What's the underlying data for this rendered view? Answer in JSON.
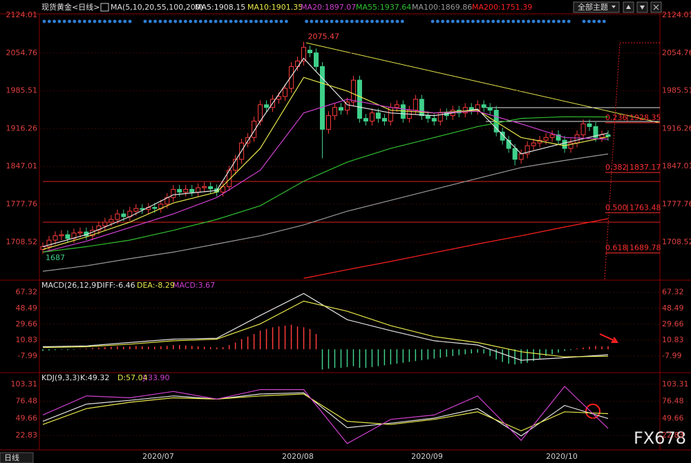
{
  "header": {
    "title": "现货黄金<日线>",
    "ma_params": "MA(5,10,20,55,100,200)",
    "theme_button": "全部主题"
  },
  "chart_data": [
    {
      "type": "candlestick",
      "up_color": "#ff3c3c",
      "down_color": "#3fd08a",
      "ylim": [
        1640,
        2124.01
      ],
      "yticks": [
        1708.52,
        1777.76,
        1847.01,
        1916.26,
        1985.51,
        2054.76,
        2124.01
      ],
      "grid": true,
      "x_labels": [
        "2020/07",
        "2020/08",
        "2020/09",
        "2020/10"
      ],
      "candles": {
        "open": [
          1695,
          1700,
          1712,
          1720,
          1722,
          1715,
          1725,
          1727,
          1720,
          1730,
          1738,
          1745,
          1750,
          1760,
          1755,
          1765,
          1770,
          1768,
          1772,
          1770,
          1778,
          1790,
          1805,
          1800,
          1805,
          1800,
          1808,
          1810,
          1806,
          1800,
          1810,
          1840,
          1860,
          1890,
          1900,
          1930,
          1960,
          1955,
          1970,
          1975,
          1990,
          2030,
          2040,
          2060,
          2055,
          2030,
          1915,
          1940,
          1955,
          1950,
          1965,
          2005,
          1935,
          1930,
          1945,
          1935,
          1930,
          1955,
          1960,
          1935,
          1950,
          1970,
          1940,
          1935,
          1930,
          1945,
          1940,
          1950,
          1945,
          1955,
          1950,
          1960,
          1955,
          1950,
          1910,
          1895,
          1880,
          1860,
          1870,
          1885,
          1890,
          1895,
          1900,
          1905,
          1895,
          1880,
          1890,
          1905,
          1925,
          1920,
          1900,
          1905
        ],
        "high": [
          1708,
          1720,
          1728,
          1730,
          1730,
          1733,
          1735,
          1735,
          1738,
          1746,
          1753,
          1758,
          1768,
          1768,
          1773,
          1778,
          1778,
          1780,
          1780,
          1786,
          1798,
          1813,
          1813,
          1813,
          1813,
          1816,
          1818,
          1818,
          1814,
          1818,
          1848,
          1868,
          1898,
          1908,
          1938,
          1968,
          1968,
          1978,
          1983,
          1998,
          2038,
          2048,
          2075.47,
          2068,
          2063,
          2038,
          1948,
          1963,
          1963,
          1973,
          2013,
          2013,
          1943,
          1953,
          1953,
          1943,
          1963,
          1968,
          1968,
          1958,
          1978,
          1978,
          1948,
          1943,
          1953,
          1953,
          1958,
          1958,
          1963,
          1963,
          1968,
          1968,
          1963,
          1958,
          1918,
          1903,
          1888,
          1878,
          1893,
          1898,
          1903,
          1908,
          1913,
          1913,
          1903,
          1898,
          1913,
          1933,
          1933,
          1928,
          1913,
          1913
        ],
        "low": [
          1687,
          1692,
          1704,
          1712,
          1707,
          1707,
          1717,
          1712,
          1712,
          1722,
          1730,
          1737,
          1742,
          1747,
          1747,
          1757,
          1760,
          1760,
          1762,
          1762,
          1770,
          1782,
          1792,
          1792,
          1792,
          1792,
          1800,
          1798,
          1792,
          1792,
          1802,
          1832,
          1852,
          1882,
          1892,
          1922,
          1947,
          1947,
          1962,
          1967,
          1982,
          2022,
          2032,
          2047,
          2022,
          1862,
          1907,
          1932,
          1942,
          1942,
          1957,
          1927,
          1922,
          1922,
          1927,
          1922,
          1922,
          1947,
          1927,
          1927,
          1942,
          1932,
          1927,
          1922,
          1922,
          1932,
          1932,
          1937,
          1937,
          1942,
          1942,
          1947,
          1942,
          1902,
          1887,
          1872,
          1848.89,
          1852,
          1862,
          1877,
          1882,
          1887,
          1892,
          1887,
          1872,
          1872,
          1882,
          1897,
          1912,
          1892,
          1892,
          1894
        ],
        "close": [
          1700,
          1712,
          1720,
          1722,
          1715,
          1725,
          1727,
          1720,
          1730,
          1738,
          1745,
          1750,
          1760,
          1755,
          1765,
          1770,
          1768,
          1772,
          1770,
          1778,
          1790,
          1805,
          1800,
          1805,
          1800,
          1808,
          1810,
          1806,
          1800,
          1810,
          1840,
          1860,
          1890,
          1900,
          1930,
          1960,
          1955,
          1970,
          1975,
          1990,
          2030,
          2040,
          2065,
          2055,
          2030,
          1915,
          1940,
          1955,
          1950,
          1965,
          2005,
          1935,
          1930,
          1945,
          1935,
          1930,
          1955,
          1960,
          1935,
          1950,
          1970,
          1940,
          1935,
          1930,
          1945,
          1940,
          1950,
          1945,
          1955,
          1950,
          1960,
          1955,
          1950,
          1910,
          1895,
          1880,
          1860,
          1870,
          1885,
          1890,
          1895,
          1900,
          1905,
          1895,
          1880,
          1890,
          1905,
          1925,
          1920,
          1900,
          1905,
          1902
        ]
      },
      "series": [
        {
          "name": "MA5:1908.15",
          "color": "#e6e6e6",
          "values": [
            1700,
            1722,
            1755,
            1795,
            1803,
            1930,
            2045,
            1960,
            1945,
            1940,
            1952,
            1870,
            1890,
            1908.15
          ]
        },
        {
          "name": "MA10:1901.35",
          "color": "#e8e84a",
          "values": [
            1695,
            1718,
            1745,
            1780,
            1800,
            1880,
            2010,
            1985,
            1950,
            1945,
            1950,
            1900,
            1885,
            1901.35
          ]
        },
        {
          "name": "MA20:1897.07",
          "color": "#d040d0",
          "values": [
            1690,
            1710,
            1735,
            1760,
            1790,
            1840,
            1945,
            1970,
            1955,
            1945,
            1948,
            1925,
            1900,
            1897.07
          ]
        },
        {
          "name": "MA55:1937.64",
          "color": "#30c030",
          "values": [
            1690,
            1700,
            1712,
            1730,
            1750,
            1775,
            1820,
            1855,
            1880,
            1900,
            1920,
            1935,
            1938,
            1937.64
          ]
        },
        {
          "name": "MA100:1869.86",
          "color": "#9a9a9a",
          "values": [
            1655,
            1665,
            1678,
            1690,
            1705,
            1720,
            1740,
            1765,
            1785,
            1805,
            1825,
            1845,
            1858,
            1869.86
          ]
        },
        {
          "name": "MA200:1751.39",
          "color": "#ff2020",
          "values": [
            null,
            null,
            null,
            null,
            null,
            null,
            1642,
            1658,
            1673,
            1689,
            1705,
            1720,
            1736,
            1751.39
          ]
        }
      ],
      "fib_levels": [
        {
          "ratio": "0.236",
          "value": 1928.35
        },
        {
          "ratio": "0.382",
          "value": 1837.17
        },
        {
          "ratio": "0.500",
          "value": 1763.48
        },
        {
          "ratio": "0.618",
          "value": 1689.78
        }
      ]
    },
    {
      "type": "macd",
      "title": "MACD(26,12,9)",
      "ylim": [
        -26,
        72
      ],
      "yticks": [
        -7.99,
        10.83,
        29.66,
        48.49,
        67.32
      ],
      "grid": true,
      "histogram": {
        "name": "MACD:3.67",
        "color": "#d040d0",
        "up_color": "#ff3c3c",
        "down_color": "#3fd08a",
        "values": [
          -2,
          -1.5,
          -1,
          -0.5,
          -1,
          -0.5,
          0.5,
          1,
          1.5,
          2,
          2.5,
          3,
          3.5,
          3,
          3.5,
          4,
          3.5,
          3,
          3,
          3.5,
          4,
          5,
          5,
          4.5,
          4,
          3.5,
          3,
          2.5,
          2,
          2.5,
          5,
          8,
          12,
          15,
          18,
          22,
          24,
          26,
          27,
          28,
          29,
          27,
          26,
          24,
          18,
          -24,
          -23,
          -22,
          -22,
          -21,
          -20,
          -22,
          -22,
          -21,
          -20,
          -19,
          -18,
          -17,
          -16,
          -15,
          -14,
          -13,
          -12,
          -11,
          -10,
          -9,
          -8,
          -7,
          -6,
          -5,
          -4,
          -5,
          -8,
          -12,
          -15,
          -17,
          -18,
          -17,
          -16,
          -14,
          -11,
          -8,
          -6,
          -4,
          -2,
          -1,
          1,
          2,
          3,
          4,
          3.5,
          3.67
        ]
      },
      "series": [
        {
          "name": "DIFF:-6.46",
          "color": "#e6e6e6",
          "values": [
            3,
            4,
            8,
            12,
            13,
            40,
            66,
            35,
            22,
            10,
            5,
            -13,
            -10,
            -6.46
          ]
        },
        {
          "name": "DEA:-8.29",
          "color": "#e8e84a",
          "values": [
            2,
            3,
            6,
            10,
            12,
            30,
            57,
            45,
            28,
            15,
            8,
            -3,
            -9,
            -8.29
          ]
        }
      ]
    },
    {
      "type": "line",
      "title": "KDJ(9,3,3)",
      "ylim": [
        0,
        113
      ],
      "yticks": [
        22.83,
        49.66,
        76.48,
        103.31
      ],
      "grid": true,
      "series": [
        {
          "name": "K:49.32",
          "color": "#e6e6e6",
          "values": [
            45,
            72,
            78,
            85,
            80,
            88,
            90,
            35,
            42,
            50,
            65,
            22,
            70,
            49.32
          ]
        },
        {
          "name": "D:57.04",
          "color": "#e8e84a",
          "values": [
            40,
            65,
            75,
            82,
            80,
            85,
            88,
            45,
            40,
            48,
            60,
            30,
            60,
            57.04
          ]
        },
        {
          "name": "J:33.90",
          "color": "#d040d0",
          "values": [
            55,
            85,
            82,
            92,
            80,
            95,
            95,
            10,
            48,
            55,
            85,
            15,
            100,
            33.9
          ]
        }
      ]
    }
  ],
  "footer": {
    "tab": "日线",
    "watermark": "FX678"
  }
}
